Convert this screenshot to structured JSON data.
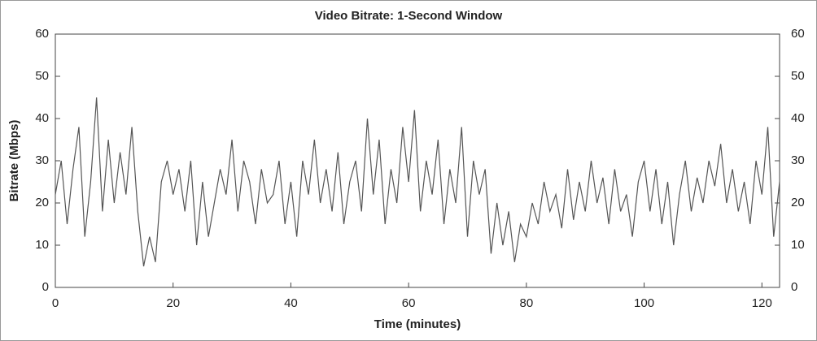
{
  "chart_data": {
    "type": "line",
    "title": "Video Bitrate: 1-Second Window",
    "x_label": "Time (minutes)",
    "y_label": "Bitrate (Mbps)",
    "x": [
      0,
      1,
      2,
      3,
      4,
      5,
      6,
      7,
      8,
      9,
      10,
      11,
      12,
      13,
      14,
      15,
      16,
      17,
      18,
      19,
      20,
      21,
      22,
      23,
      24,
      25,
      26,
      27,
      28,
      29,
      30,
      31,
      32,
      33,
      34,
      35,
      36,
      37,
      38,
      39,
      40,
      41,
      42,
      43,
      44,
      45,
      46,
      47,
      48,
      49,
      50,
      51,
      52,
      53,
      54,
      55,
      56,
      57,
      58,
      59,
      60,
      61,
      62,
      63,
      64,
      65,
      66,
      67,
      68,
      69,
      70,
      71,
      72,
      73,
      74,
      75,
      76,
      77,
      78,
      79,
      80,
      81,
      82,
      83,
      84,
      85,
      86,
      87,
      88,
      89,
      90,
      91,
      92,
      93,
      94,
      95,
      96,
      97,
      98,
      99,
      100,
      101,
      102,
      103,
      104,
      105,
      106,
      107,
      108,
      109,
      110,
      111,
      112,
      113,
      114,
      115,
      116,
      117,
      118,
      119,
      120,
      121,
      122,
      123
    ],
    "series": [
      {
        "name": "Bitrate",
        "color": "#555555",
        "values": [
          22,
          30,
          15,
          28,
          38,
          12,
          25,
          45,
          18,
          35,
          20,
          32,
          22,
          38,
          18,
          5,
          12,
          6,
          25,
          30,
          22,
          28,
          18,
          30,
          10,
          25,
          12,
          20,
          28,
          22,
          35,
          18,
          30,
          25,
          15,
          28,
          20,
          22,
          30,
          15,
          25,
          12,
          30,
          22,
          35,
          20,
          28,
          18,
          32,
          15,
          25,
          30,
          18,
          40,
          22,
          35,
          15,
          28,
          20,
          38,
          25,
          42,
          18,
          30,
          22,
          35,
          15,
          28,
          20,
          38,
          12,
          30,
          22,
          28,
          8,
          20,
          10,
          18,
          6,
          15,
          12,
          20,
          15,
          25,
          18,
          22,
          14,
          28,
          16,
          25,
          18,
          30,
          20,
          26,
          15,
          28,
          18,
          22,
          12,
          25,
          30,
          18,
          28,
          15,
          25,
          10,
          22,
          30,
          18,
          26,
          20,
          30,
          24,
          34,
          20,
          28,
          18,
          25,
          15,
          30,
          22,
          38,
          12,
          25
        ]
      }
    ],
    "xlim": [
      0,
      123
    ],
    "xticks": [
      0,
      20,
      40,
      60,
      80,
      100,
      120
    ],
    "ylim": [
      0,
      60
    ],
    "yticks": [
      0,
      10,
      20,
      30,
      40,
      50,
      60
    ]
  }
}
